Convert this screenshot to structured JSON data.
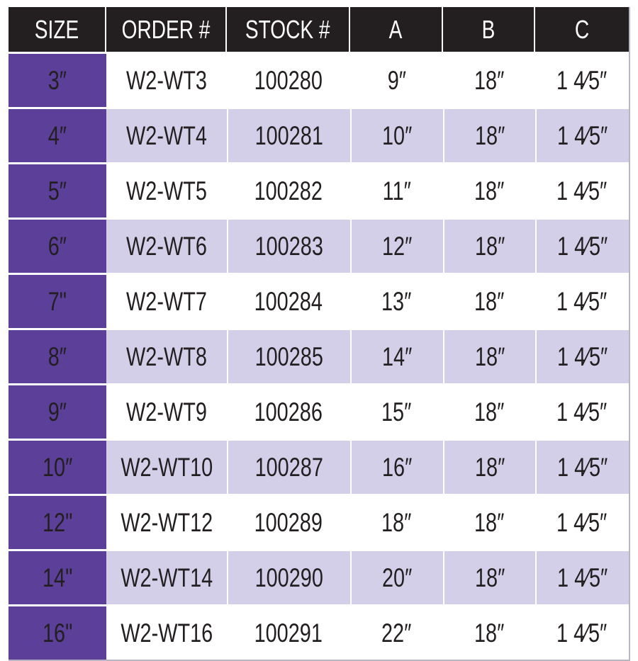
{
  "table": {
    "headers": [
      "SIZE",
      "ORDER #",
      "STOCK #",
      "A",
      "B",
      "C"
    ],
    "rows": [
      [
        "3″",
        "W2-WT3",
        "100280",
        "9″",
        "18″",
        "1 4⁄5″"
      ],
      [
        "4″",
        "W2-WT4",
        "100281",
        "10″",
        "18″",
        "1 4⁄5″"
      ],
      [
        "5″",
        "W2-WT5",
        "100282",
        "11″",
        "18″",
        "1 4⁄5″"
      ],
      [
        "6″",
        "W2-WT6",
        "100283",
        "12″",
        "18″",
        "1 4⁄5″"
      ],
      [
        "7\"",
        "W2-WT7",
        "100284",
        "13″",
        "18″",
        "1 4⁄5″"
      ],
      [
        "8″",
        "W2-WT8",
        "100285",
        "14″",
        "18″",
        "1 4⁄5″"
      ],
      [
        "9″",
        "W2-WT9",
        "100286",
        "15″",
        "18″",
        "1 4⁄5″"
      ],
      [
        "10″",
        "W2-WT10",
        "100287",
        "16″",
        "18″",
        "1 4⁄5″"
      ],
      [
        "12\"",
        "W2-WT12",
        "100289",
        "18″",
        "18″",
        "1 4⁄5″"
      ],
      [
        "14\"",
        "W2-WT14",
        "100290",
        "20″",
        "18″",
        "1 4⁄5″"
      ],
      [
        "16\"",
        "W2-WT16",
        "100291",
        "22″",
        "18″",
        "1 4⁄5″"
      ]
    ]
  },
  "colors": {
    "header": "#231f20",
    "size_column": "#5b3f99",
    "alt_row": "#d4cfe8"
  }
}
